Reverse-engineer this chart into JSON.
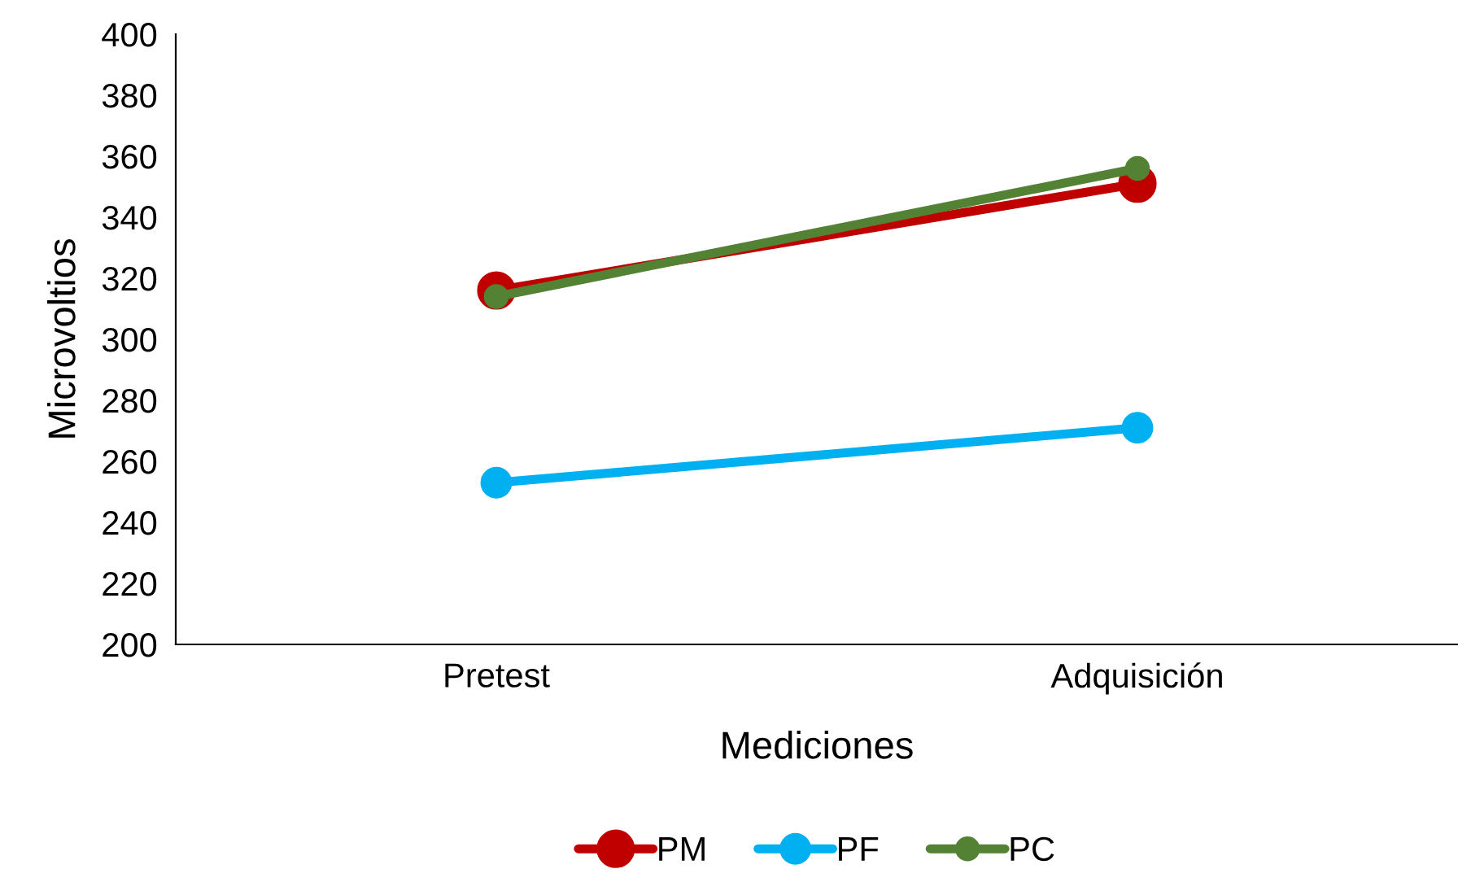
{
  "chart_data": {
    "type": "line",
    "xlabel": "Mediciones",
    "ylabel": "Microvoltios",
    "categories": [
      "Pretest",
      "Adquisición"
    ],
    "series": [
      {
        "name": "PM",
        "color": "#c00000",
        "values": [
          316,
          351
        ]
      },
      {
        "name": "PF",
        "color": "#00b0f0",
        "values": [
          253,
          271
        ]
      },
      {
        "name": "PC",
        "color": "#548235",
        "values": [
          314,
          356
        ]
      }
    ],
    "ylim": [
      200,
      400
    ],
    "yticks": [
      200,
      220,
      240,
      260,
      280,
      300,
      320,
      340,
      360,
      380,
      400
    ],
    "grid": false,
    "legend": "bottom",
    "marker": "circle",
    "line_style": "solid"
  }
}
